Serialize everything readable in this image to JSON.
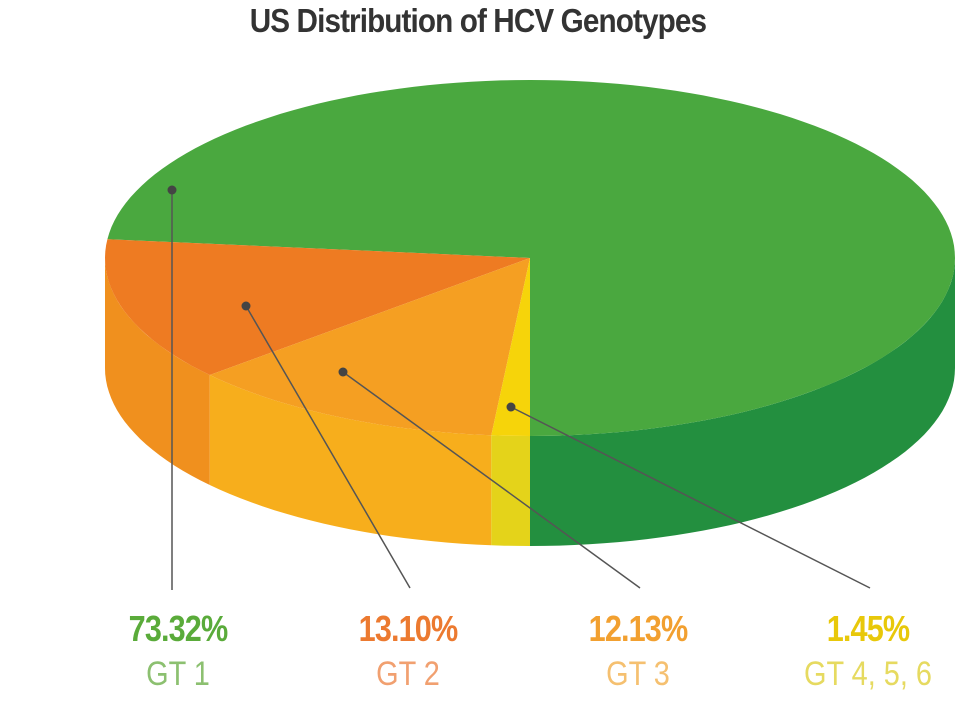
{
  "chart_data": {
    "type": "pie",
    "style": "3d",
    "title": "US Distribution of HCV Genotypes",
    "slices": [
      {
        "label": "GT 1",
        "value": 73.32,
        "value_label": "73.32%",
        "color": "#4aa83f",
        "side_color": "#238f3f",
        "pct_color": "#5aab3a",
        "name_color": "#8cc070"
      },
      {
        "label": "GT 2",
        "value": 13.1,
        "value_label": "13.10%",
        "color": "#ee7b22",
        "side_color": "#f0901e",
        "pct_color": "#ec7a30",
        "name_color": "#f1a070"
      },
      {
        "label": "GT 3",
        "value": 12.13,
        "value_label": "12.13%",
        "color": "#f59f22",
        "side_color": "#f7ae1c",
        "pct_color": "#f2a030",
        "name_color": "#f5c070"
      },
      {
        "label": "GT 4, 5, 6",
        "value": 1.45,
        "value_label": "1.45%",
        "color": "#f6d40a",
        "side_color": "#e4d31a",
        "pct_color": "#e8c80a",
        "name_color": "#e6da60"
      }
    ]
  }
}
